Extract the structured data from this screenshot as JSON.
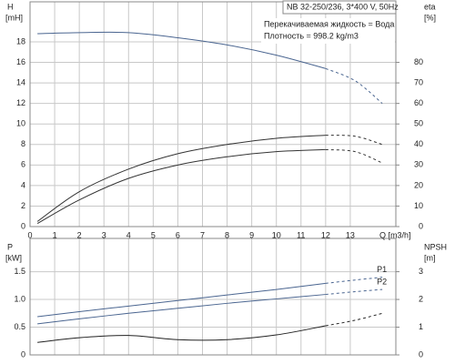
{
  "chart_data": [
    {
      "type": "line",
      "annotations": [
        "NB 32-250/236, 3*400 V, 50Hz",
        "Перекачиваемая жидкость = Вода",
        "Плотность = 998.2 kg/m3"
      ],
      "ylabel": "H",
      "yunit": "[mH]",
      "y2label": "eta",
      "y2unit": "[%]",
      "xlabel": "Q [m3/h]",
      "x": [
        0.3,
        2,
        4,
        6,
        8,
        10,
        12,
        13.2,
        14.3
      ],
      "solid_until": 12,
      "series": [
        {
          "color": "#4a6590",
          "values": [
            18.8,
            18.9,
            18.9,
            18.4,
            17.7,
            16.7,
            15.4,
            14.2,
            12.0
          ]
        },
        {
          "color": "#333333",
          "axis": "y2",
          "values": [
            2.5,
            17,
            28,
            35.5,
            40,
            43,
            44.5,
            44,
            40
          ]
        },
        {
          "color": "#333333",
          "axis": "y2",
          "values": [
            1.5,
            13,
            23.5,
            30,
            34,
            36.5,
            37.5,
            36.5,
            31
          ]
        }
      ],
      "xlim": [
        0,
        14.85
      ],
      "xticks": [
        0,
        1,
        2,
        3,
        4,
        5,
        6,
        7,
        8,
        9,
        10,
        11,
        12,
        13
      ],
      "ylim": [
        0,
        21.9
      ],
      "yticks": [
        0,
        2,
        4,
        6,
        8,
        10,
        12,
        14,
        16,
        18
      ],
      "y2lim": [
        0,
        109.5
      ],
      "y2ticks": [
        0,
        10,
        20,
        30,
        40,
        50,
        60,
        70,
        80
      ],
      "grid": true
    },
    {
      "type": "line",
      "ylabel": "P",
      "yunit": "[kW]",
      "y2label": "NPSH",
      "y2unit": "[m]",
      "x": [
        0.3,
        2,
        4,
        6,
        8,
        10,
        12,
        13.2,
        14.3
      ],
      "solid_until": 12,
      "series": [
        {
          "name": "P1",
          "color": "#4a6590",
          "values": [
            0.69,
            0.78,
            0.88,
            0.98,
            1.08,
            1.18,
            1.29,
            1.35,
            1.4
          ]
        },
        {
          "name": "P2",
          "color": "#4a6590",
          "values": [
            0.56,
            0.65,
            0.75,
            0.84,
            0.93,
            1.01,
            1.09,
            1.14,
            1.18
          ]
        },
        {
          "color": "#222222",
          "axis": "y2",
          "values": [
            0.45,
            0.62,
            0.7,
            0.55,
            0.55,
            0.72,
            1.05,
            1.25,
            1.5
          ]
        }
      ],
      "xlim": [
        0,
        14.85
      ],
      "xticks": [
        0,
        1,
        2,
        3,
        4,
        5,
        6,
        7,
        8,
        9,
        10,
        11,
        12,
        13
      ],
      "ylim": [
        0,
        2.1
      ],
      "yticks": [
        0,
        0.5,
        {
          "value": 1,
          "label": "1.0"
        },
        1.5
      ],
      "y2lim": [
        0,
        4.2
      ],
      "y2ticks": [
        0,
        1,
        2,
        3
      ],
      "grid": true
    }
  ]
}
